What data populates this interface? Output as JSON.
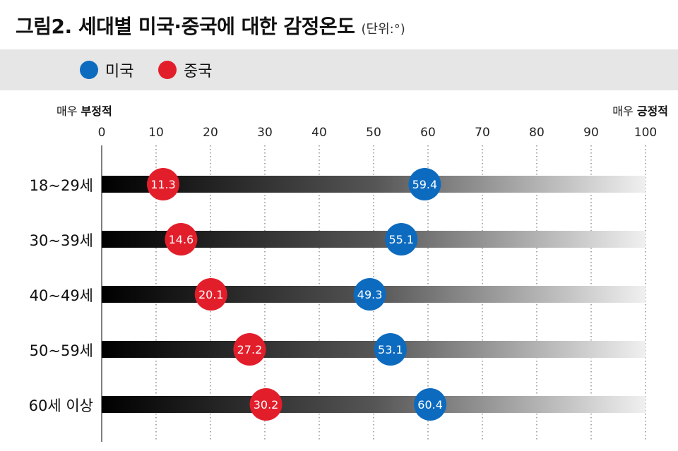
{
  "header": {
    "title": "그림2. 세대별 미국·중국에 대한 감정온도",
    "unit": "(단위:°)"
  },
  "legend": [
    {
      "label": "미국",
      "color": "#0d6bbf"
    },
    {
      "label": "중국",
      "color": "#e31e2b"
    }
  ],
  "scale_labels": {
    "left_prefix": "매우",
    "left_emphasis": "부정적",
    "right_prefix": "매우",
    "right_emphasis": "긍정적"
  },
  "chart_data": {
    "type": "scatter",
    "xlim": [
      0,
      100
    ],
    "x_ticks": [
      "0",
      "10",
      "20",
      "30",
      "40",
      "50",
      "60",
      "70",
      "80",
      "90",
      "100"
    ],
    "categories": [
      "18~29세",
      "30~39세",
      "40~49세",
      "50~59세",
      "60세 이상"
    ],
    "series": [
      {
        "name": "미국",
        "color": "#0d6bbf",
        "values": [
          59.4,
          55.1,
          49.3,
          53.1,
          60.4
        ]
      },
      {
        "name": "중국",
        "color": "#e31e2b",
        "values": [
          11.3,
          14.6,
          20.1,
          27.2,
          30.2
        ]
      }
    ],
    "grid": true
  }
}
